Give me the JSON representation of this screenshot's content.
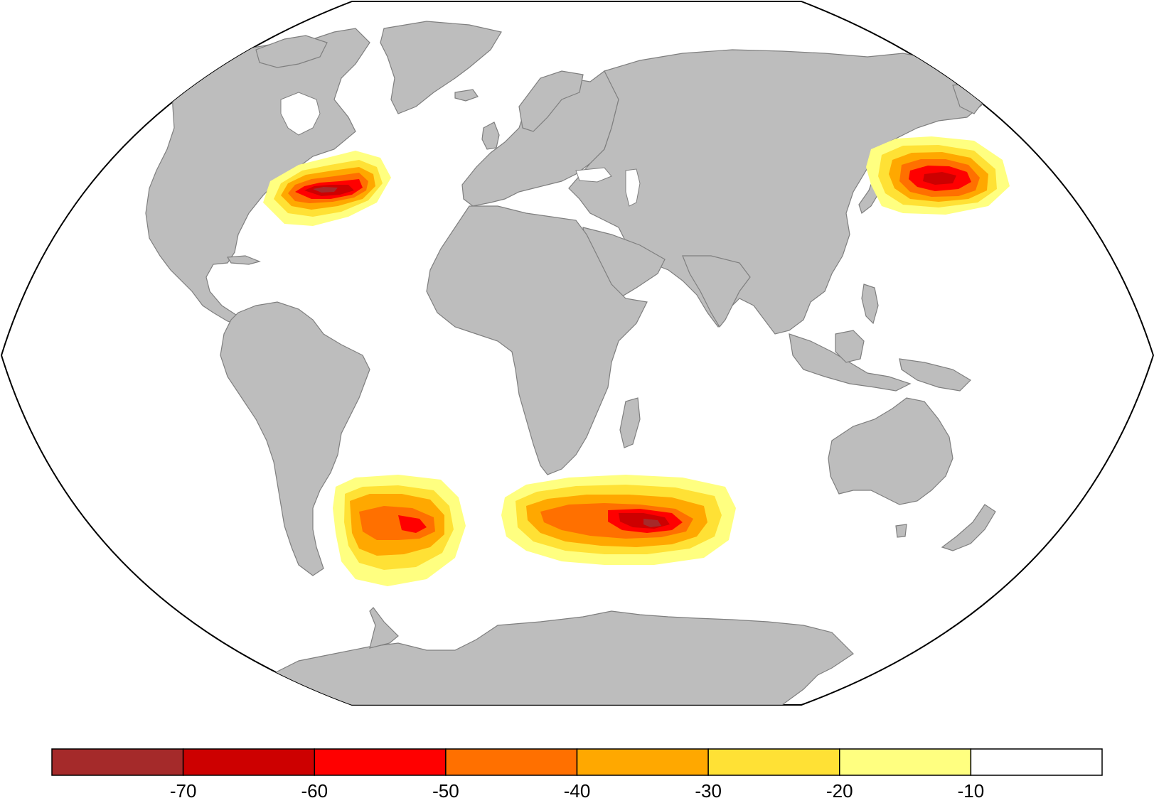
{
  "map": {
    "projection": "Robinson-like",
    "land_color": "#bdbdbd",
    "ocean_color": "#ffffff"
  },
  "anomaly_regions": [
    {
      "region": "North Atlantic (Gulf Stream)",
      "min_value": -70
    },
    {
      "region": "North Pacific (Kuroshio)",
      "min_value": -60
    },
    {
      "region": "South Atlantic (Brazil–Malvinas)",
      "min_value": -60
    },
    {
      "region": "South Indian (Agulhas Return)",
      "min_value": -70
    }
  ],
  "colorbar": {
    "boundaries": [
      -80,
      -70,
      -60,
      -50,
      -40,
      -30,
      -20,
      -10,
      0
    ],
    "colors": [
      "#a52a2a",
      "#cd0000",
      "#ff0000",
      "#ff7000",
      "#ffa800",
      "#ffe135",
      "#ffff80",
      "#ffffff"
    ],
    "tick_labels": [
      "-70",
      "-60",
      "-50",
      "-40",
      "-30",
      "-20",
      "-10"
    ]
  }
}
